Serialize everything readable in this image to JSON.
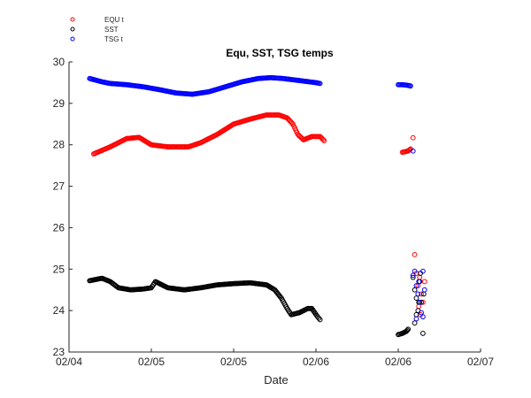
{
  "chart_data": {
    "type": "scatter",
    "title": "Equ, SST, TSG temps",
    "xlabel": "Date",
    "ylabel": "",
    "x_ticks": [
      "02/04",
      "02/05",
      "02/05",
      "02/06",
      "02/06",
      "02/07"
    ],
    "x_domain": [
      0,
      5
    ],
    "ylim": [
      23,
      30
    ],
    "y_ticks": [
      "23",
      "24",
      "25",
      "26",
      "27",
      "28",
      "29",
      "30"
    ],
    "legend_position": "top-left",
    "grid": false,
    "marker": "open-circle",
    "series": [
      {
        "name": "EQU t",
        "color": "#ff0000",
        "segments": [
          [
            [
              0.3,
              27.78
            ],
            [
              0.5,
              27.95
            ],
            [
              0.7,
              28.15
            ],
            [
              0.85,
              28.18
            ],
            [
              1.0,
              28.0
            ],
            [
              1.2,
              27.95
            ],
            [
              1.45,
              27.95
            ],
            [
              1.6,
              28.05
            ],
            [
              1.8,
              28.25
            ],
            [
              2.0,
              28.5
            ],
            [
              2.2,
              28.62
            ],
            [
              2.4,
              28.72
            ],
            [
              2.55,
              28.72
            ],
            [
              2.65,
              28.65
            ],
            [
              2.72,
              28.5
            ],
            [
              2.78,
              28.25
            ],
            [
              2.85,
              28.12
            ],
            [
              2.95,
              28.2
            ],
            [
              3.05,
              28.2
            ],
            [
              3.1,
              28.1
            ]
          ],
          [
            [
              4.05,
              27.82
            ],
            [
              4.12,
              27.85
            ],
            [
              4.15,
              27.9
            ]
          ]
        ],
        "scatter": [
          [
            4.18,
            28.17
          ],
          [
            4.2,
            25.35
          ],
          [
            4.22,
            24.9
          ],
          [
            4.24,
            24.6
          ],
          [
            4.26,
            24.8
          ],
          [
            4.28,
            24.4
          ],
          [
            4.3,
            24.2
          ],
          [
            4.32,
            24.7
          ],
          [
            4.25,
            24.1
          ],
          [
            4.27,
            23.9
          ]
        ]
      },
      {
        "name": "SST",
        "color": "#000000",
        "segments": [
          [
            [
              0.25,
              24.72
            ],
            [
              0.4,
              24.78
            ],
            [
              0.5,
              24.7
            ],
            [
              0.6,
              24.55
            ],
            [
              0.75,
              24.5
            ],
            [
              0.9,
              24.52
            ],
            [
              1.0,
              24.55
            ],
            [
              1.05,
              24.7
            ],
            [
              1.1,
              24.65
            ],
            [
              1.2,
              24.55
            ],
            [
              1.4,
              24.5
            ],
            [
              1.6,
              24.55
            ],
            [
              1.8,
              24.62
            ],
            [
              2.0,
              24.65
            ],
            [
              2.2,
              24.67
            ],
            [
              2.4,
              24.62
            ],
            [
              2.5,
              24.5
            ],
            [
              2.58,
              24.3
            ],
            [
              2.65,
              24.05
            ],
            [
              2.7,
              23.9
            ],
            [
              2.8,
              23.95
            ],
            [
              2.9,
              24.05
            ],
            [
              2.95,
              24.05
            ],
            [
              3.02,
              23.85
            ],
            [
              3.05,
              23.78
            ]
          ],
          [
            [
              4.0,
              23.42
            ],
            [
              4.05,
              23.45
            ],
            [
              4.1,
              23.5
            ],
            [
              4.12,
              23.55
            ]
          ]
        ],
        "scatter": [
          [
            4.18,
            24.8
          ],
          [
            4.2,
            24.5
          ],
          [
            4.22,
            24.3
          ],
          [
            4.24,
            24.0
          ],
          [
            4.26,
            24.7
          ],
          [
            4.28,
            24.2
          ],
          [
            4.2,
            23.7
          ],
          [
            4.22,
            23.9
          ],
          [
            4.25,
            24.2
          ],
          [
            4.3,
            23.45
          ],
          [
            4.27,
            24.9
          ],
          [
            4.31,
            24.4
          ]
        ]
      },
      {
        "name": "TSG t",
        "color": "#0000ff",
        "segments": [
          [
            [
              0.25,
              29.6
            ],
            [
              0.4,
              29.52
            ],
            [
              0.5,
              29.48
            ],
            [
              0.7,
              29.45
            ],
            [
              0.9,
              29.4
            ],
            [
              1.1,
              29.33
            ],
            [
              1.3,
              29.25
            ],
            [
              1.5,
              29.22
            ],
            [
              1.7,
              29.28
            ],
            [
              1.9,
              29.4
            ],
            [
              2.1,
              29.52
            ],
            [
              2.3,
              29.6
            ],
            [
              2.45,
              29.62
            ],
            [
              2.6,
              29.6
            ],
            [
              2.8,
              29.55
            ],
            [
              3.0,
              29.5
            ],
            [
              3.05,
              29.48
            ]
          ],
          [
            [
              4.0,
              29.45
            ],
            [
              4.05,
              29.45
            ],
            [
              4.1,
              29.44
            ],
            [
              4.15,
              29.42
            ]
          ]
        ],
        "scatter": [
          [
            4.18,
            27.85
          ],
          [
            4.18,
            24.85
          ],
          [
            4.2,
            24.95
          ],
          [
            4.22,
            24.6
          ],
          [
            4.24,
            24.4
          ],
          [
            4.26,
            24.2
          ],
          [
            4.28,
            23.95
          ],
          [
            4.3,
            23.85
          ],
          [
            4.25,
            24.7
          ],
          [
            4.22,
            23.8
          ],
          [
            4.32,
            24.5
          ],
          [
            4.3,
            24.95
          ]
        ]
      }
    ]
  }
}
